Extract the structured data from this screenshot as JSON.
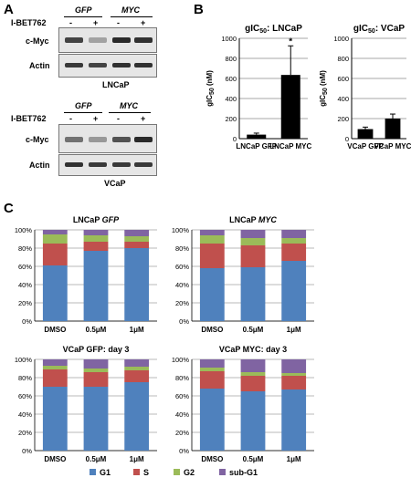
{
  "panels": {
    "a": "A",
    "b": "B",
    "c": "C"
  },
  "western": {
    "lncap": {
      "cell": "LNCaP",
      "groups": [
        "GFP",
        "MYC"
      ],
      "treatment": "I-BET762",
      "lanes": [
        "-",
        "+",
        "-",
        "+"
      ],
      "rows": [
        "c-Myc",
        "Actin"
      ],
      "cmyc_intensity": [
        0.85,
        0.25,
        1.0,
        0.95
      ],
      "actin_intensity": [
        0.9,
        0.85,
        0.95,
        0.95
      ]
    },
    "vcap": {
      "cell": "VCaP",
      "groups": [
        "GFP",
        "MYC"
      ],
      "treatment": "I-BET762",
      "lanes": [
        "-",
        "+",
        "-",
        "+"
      ],
      "rows": [
        "c-Myc",
        "Actin"
      ],
      "cmyc_intensity": [
        0.55,
        0.3,
        0.75,
        1.0
      ],
      "actin_intensity": [
        0.95,
        0.9,
        0.9,
        0.9
      ]
    }
  },
  "chart_data": [
    {
      "id": "gic50-lncap",
      "type": "bar",
      "title": "gIC",
      "title_sub": "50",
      "title_rest": ": LNCaP",
      "ylabel": "gIC",
      "ylabel_sub": "50",
      "ylabel_rest": " (nM)",
      "categories": [
        "LNCaP GFP",
        "LNCaP MYC"
      ],
      "values": [
        40,
        635
      ],
      "errors": [
        15,
        290
      ],
      "annotations": [
        "",
        "*"
      ],
      "ylim": [
        0,
        1000
      ],
      "yticks": [
        "0",
        "200",
        "400",
        "600",
        "800",
        "1000"
      ],
      "grid": true
    },
    {
      "id": "gic50-vcap",
      "type": "bar",
      "title": "gIC",
      "title_sub": "50",
      "title_rest": ": VCaP",
      "ylabel": "gIC",
      "ylabel_sub": "50",
      "ylabel_rest": " (nM)",
      "categories": [
        "VCaP GFP",
        "VCaP MYC"
      ],
      "values": [
        95,
        200
      ],
      "errors": [
        20,
        45
      ],
      "annotations": [
        "",
        ""
      ],
      "ylim": [
        0,
        1000
      ],
      "yticks": [
        "0",
        "200",
        "400",
        "600",
        "800",
        "1000"
      ],
      "grid": true
    },
    {
      "id": "cc-lncap-gfp",
      "type": "bar",
      "stacked": true,
      "title_plain": "LNCaP ",
      "title_ital": "GFP",
      "categories": [
        "DMSO",
        "0.5μM",
        "1μM"
      ],
      "series": [
        {
          "name": "G1",
          "values": [
            61,
            77,
            80
          ]
        },
        {
          "name": "S",
          "values": [
            24,
            10,
            7
          ]
        },
        {
          "name": "G2",
          "values": [
            10,
            7,
            6
          ]
        },
        {
          "name": "sub-G1",
          "values": [
            5,
            6,
            7
          ]
        }
      ],
      "ylim": [
        0,
        100
      ],
      "yticks": [
        "0%",
        "20%",
        "40%",
        "60%",
        "80%",
        "100%"
      ],
      "grid": true
    },
    {
      "id": "cc-lncap-myc",
      "type": "bar",
      "stacked": true,
      "title_plain": "LNCaP ",
      "title_ital": "MYC",
      "categories": [
        "DMSO",
        "0.5μM",
        "1μM"
      ],
      "series": [
        {
          "name": "G1",
          "values": [
            58,
            59,
            66
          ]
        },
        {
          "name": "S",
          "values": [
            27,
            24,
            19
          ]
        },
        {
          "name": "G2",
          "values": [
            9,
            8,
            6
          ]
        },
        {
          "name": "sub-G1",
          "values": [
            6,
            9,
            9
          ]
        }
      ],
      "ylim": [
        0,
        100
      ],
      "yticks": [
        "0%",
        "20%",
        "40%",
        "60%",
        "80%",
        "100%"
      ],
      "grid": true
    },
    {
      "id": "cc-vcap-gfp",
      "type": "bar",
      "stacked": true,
      "title_plain": "VCaP GFP: day 3",
      "title_ital": "",
      "categories": [
        "DMSO",
        "0.5μM",
        "1μM"
      ],
      "series": [
        {
          "name": "G1",
          "values": [
            70,
            70,
            75
          ]
        },
        {
          "name": "S",
          "values": [
            19,
            16,
            13
          ]
        },
        {
          "name": "G2",
          "values": [
            4,
            4,
            4
          ]
        },
        {
          "name": "sub-G1",
          "values": [
            7,
            10,
            8
          ]
        }
      ],
      "ylim": [
        0,
        100
      ],
      "yticks": [
        "0%",
        "20%",
        "40%",
        "60%",
        "80%",
        "100%"
      ],
      "grid": true
    },
    {
      "id": "cc-vcap-myc",
      "type": "bar",
      "stacked": true,
      "title_plain": "VCaP MYC: day 3",
      "title_ital": "",
      "categories": [
        "DMSO",
        "0.5μM",
        "1μM"
      ],
      "series": [
        {
          "name": "G1",
          "values": [
            68,
            65,
            67
          ]
        },
        {
          "name": "S",
          "values": [
            19,
            17,
            15
          ]
        },
        {
          "name": "G2",
          "values": [
            4,
            4,
            3
          ]
        },
        {
          "name": "sub-G1",
          "values": [
            9,
            14,
            15
          ]
        }
      ],
      "ylim": [
        0,
        100
      ],
      "yticks": [
        "0%",
        "20%",
        "40%",
        "60%",
        "80%",
        "100%"
      ],
      "grid": true
    }
  ],
  "legend": [
    {
      "name": "G1",
      "color": "#4f81bd"
    },
    {
      "name": "S",
      "color": "#c0504d"
    },
    {
      "name": "G2",
      "color": "#9bbb59"
    },
    {
      "name": "sub-G1",
      "color": "#8064a2"
    }
  ]
}
